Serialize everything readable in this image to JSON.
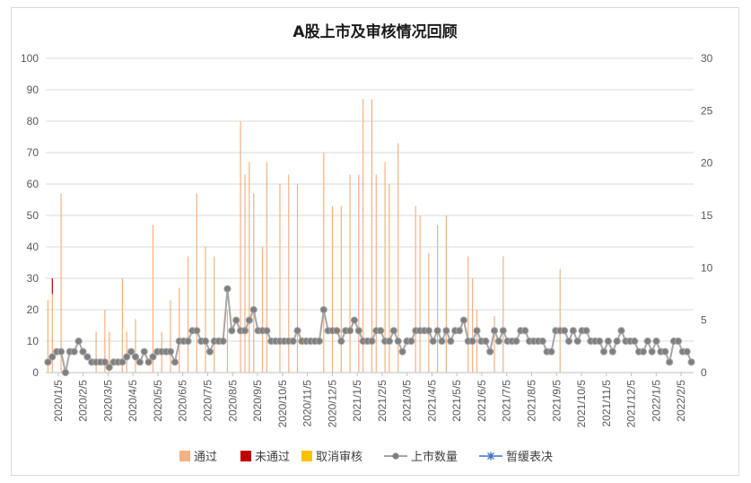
{
  "chart_data": {
    "type": "bar",
    "title": "A股上市及审核情况回顾",
    "left_axis": {
      "min": 0,
      "max": 100,
      "ticks": [
        "0",
        "10",
        "20",
        "30",
        "40",
        "50",
        "60",
        "70",
        "80",
        "90",
        "100"
      ]
    },
    "right_axis": {
      "min": 0,
      "max": 30,
      "ticks": [
        "0",
        "5",
        "10",
        "15",
        "20",
        "25",
        "30"
      ]
    },
    "x_tick_labels": [
      "2020/1/5",
      "2020/2/5",
      "2020/3/5",
      "2020/4/5",
      "2020/5/5",
      "2020/6/5",
      "2020/7/5",
      "2020/8/5",
      "2020/9/5",
      "2020/10/5",
      "2020/11/5",
      "2020/12/5",
      "2021/1/5",
      "2021/2/5",
      "2021/3/5",
      "2021/4/5",
      "2021/5/5",
      "2021/6/5",
      "2021/7/5",
      "2021/8/5",
      "2021/9/5",
      "2021/10/5",
      "2021/11/5",
      "2021/12/5",
      "2022/1/5",
      "2022/2/5"
    ],
    "legend_position": "bottom",
    "colors": {
      "approved": "#f4b183",
      "rejected": "#c00000",
      "cancelled": "#ffc000",
      "listing_line": "#a6a6a6",
      "listing_marker": "#7f7f7f",
      "suspended": "#4472c4",
      "grid": "#d9d9d9"
    },
    "series": [
      {
        "name": "通过",
        "axis": "left",
        "values": [
          23,
          25,
          0,
          57,
          0,
          0,
          0,
          0,
          0,
          0,
          0,
          13,
          0,
          20,
          13,
          0,
          0,
          30,
          13,
          0,
          17,
          0,
          0,
          0,
          47,
          0,
          13,
          0,
          23,
          0,
          27,
          0,
          37,
          0,
          57,
          0,
          40,
          0,
          37,
          0,
          0,
          20,
          0,
          0,
          80,
          63,
          67,
          57,
          0,
          40,
          67,
          0,
          0,
          60,
          0,
          63,
          0,
          60,
          0,
          0,
          0,
          0,
          0,
          70,
          0,
          53,
          0,
          53,
          0,
          63,
          0,
          63,
          87,
          0,
          87,
          63,
          0,
          67,
          60,
          0,
          73,
          0,
          0,
          0,
          53,
          50,
          0,
          38,
          0,
          47,
          0,
          50,
          0,
          0,
          0,
          0,
          37,
          30,
          20,
          0,
          0,
          0,
          18,
          0,
          37,
          0,
          0,
          0,
          0,
          0,
          0,
          0,
          0,
          0,
          0,
          0,
          0,
          33,
          0,
          0,
          0,
          0,
          0,
          0,
          0,
          0,
          0,
          0,
          0,
          0,
          0,
          0,
          0,
          0,
          0,
          0,
          0,
          0,
          0,
          0,
          0,
          0,
          0,
          0,
          0,
          0
        ]
      },
      {
        "name": "未通过",
        "axis": "left",
        "values": [
          0,
          5,
          0,
          0,
          0,
          0,
          0,
          0,
          0,
          0,
          0,
          0,
          0,
          0,
          0,
          0,
          0,
          0,
          0,
          0,
          0,
          0,
          0,
          0,
          0,
          0,
          0,
          0,
          0,
          0,
          0,
          0,
          0,
          0,
          0,
          0,
          0,
          0,
          0,
          0,
          0,
          0,
          0,
          0,
          0,
          0,
          0,
          0,
          0,
          0,
          0,
          0,
          0,
          0,
          0,
          0,
          0,
          0,
          0,
          0,
          0,
          0,
          0,
          0,
          0,
          0,
          0,
          0,
          0,
          0,
          0,
          0,
          0,
          0,
          0,
          0,
          0,
          0,
          0,
          0,
          0,
          0,
          0,
          0,
          0,
          0,
          0,
          0,
          0,
          0,
          0,
          0,
          0,
          0,
          0,
          0,
          0,
          0,
          0,
          0,
          0,
          0,
          0,
          0,
          0,
          0,
          0,
          0,
          0,
          0,
          0,
          0,
          0,
          0,
          0,
          0,
          0,
          0,
          0,
          0,
          0,
          0,
          0,
          0,
          0,
          0,
          0,
          0,
          0,
          0,
          0,
          0,
          0,
          0,
          0,
          0,
          0,
          0,
          0,
          0,
          0,
          0,
          0,
          0,
          0,
          0,
          0
        ]
      },
      {
        "name": "取消审核",
        "axis": "left",
        "values": [
          0,
          0,
          0,
          0,
          0,
          0,
          0,
          0,
          0,
          0,
          0,
          0,
          0,
          0,
          0,
          0,
          0,
          0,
          0,
          0,
          0,
          0,
          0,
          0,
          0,
          0,
          0,
          0,
          0,
          0,
          0,
          0,
          0,
          0,
          0,
          0,
          0,
          0,
          0,
          0,
          0,
          0,
          0,
          0,
          0,
          0,
          0,
          0,
          0,
          0,
          0,
          0,
          0,
          0,
          0,
          0,
          0,
          0,
          0,
          0,
          0,
          0,
          0,
          0,
          0,
          0,
          0,
          0,
          0,
          0,
          0,
          0,
          0,
          0,
          0,
          0,
          0,
          0,
          0,
          0,
          0,
          0,
          0,
          0,
          0,
          0,
          0,
          0,
          0,
          0,
          0,
          0,
          0,
          0,
          0,
          0,
          0,
          0,
          0,
          0,
          0,
          0,
          0,
          0,
          0,
          0,
          0,
          0,
          0,
          0,
          0,
          0,
          0,
          0,
          0,
          0,
          0,
          0,
          0,
          0,
          0,
          0,
          0,
          0,
          0,
          0,
          0,
          0,
          0,
          0,
          0,
          0,
          0,
          0,
          0,
          0,
          0,
          0,
          0,
          0,
          0,
          0,
          0,
          0,
          0,
          0,
          0
        ]
      },
      {
        "name": "上市数量",
        "axis": "right",
        "values": [
          1,
          1.5,
          2,
          2,
          0,
          2,
          2,
          3,
          2,
          1.5,
          1,
          1,
          1,
          1,
          0.5,
          1,
          1,
          1,
          1.5,
          2,
          1.5,
          1,
          2,
          1,
          1.5,
          2,
          2,
          2,
          2,
          1,
          3,
          3,
          3,
          4,
          4,
          3,
          3,
          2,
          3,
          3,
          3,
          8,
          4,
          5,
          4,
          4,
          5,
          6,
          4,
          4,
          4,
          3,
          3,
          3,
          3,
          3,
          3,
          4,
          3,
          3,
          3,
          3,
          3,
          6,
          4,
          4,
          4,
          3,
          4,
          4,
          5,
          4,
          3,
          3,
          3,
          4,
          4,
          3,
          3,
          4,
          3,
          2,
          3,
          3,
          4,
          4,
          4,
          4,
          3,
          4,
          3,
          4,
          3,
          4,
          4,
          5,
          3,
          3,
          4,
          3,
          3,
          2,
          4,
          3,
          4,
          3,
          3,
          3,
          4,
          4,
          3,
          3,
          3,
          3,
          2,
          2,
          4,
          4,
          4,
          3,
          4,
          3,
          4,
          4,
          3,
          3,
          3,
          2,
          3,
          2,
          3,
          4,
          3,
          3,
          3,
          2,
          2,
          3,
          2,
          3,
          2,
          2,
          1,
          3,
          3,
          2,
          2,
          1
        ]
      },
      {
        "name": "暂缓表决",
        "axis": "right",
        "values": []
      }
    ]
  },
  "legend": [
    {
      "key": "approved",
      "label": "通过"
    },
    {
      "key": "rejected",
      "label": "未通过"
    },
    {
      "key": "cancelled",
      "label": "取消审核"
    },
    {
      "key": "listing",
      "label": "上市数量"
    },
    {
      "key": "suspended",
      "label": "暂缓表决"
    }
  ]
}
